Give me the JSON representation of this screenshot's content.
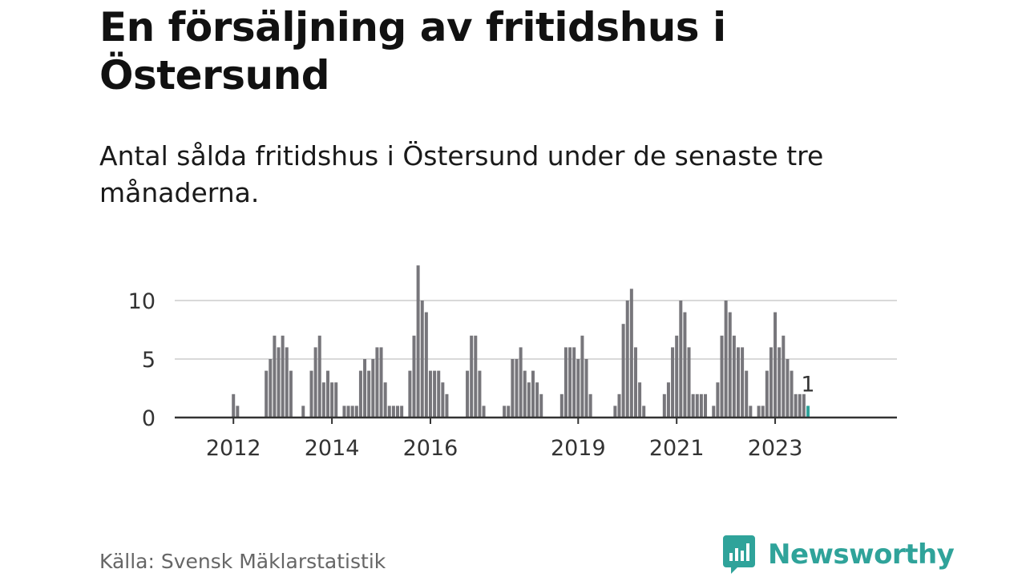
{
  "title": "En försäljning av fritidshus i Östersund",
  "subtitle": "Antal sålda fritidshus i Östersund under de senaste tre månaderna.",
  "source": "Källa: Svensk Mäklarstatistik",
  "brand": {
    "name": "Newsworthy",
    "icon": "newsworthy-logo-icon"
  },
  "colors": {
    "bar": "#77767b",
    "highlight": "#2fa39a",
    "grid": "#d9d9d9",
    "axis": "#333333",
    "text": "#333333"
  },
  "chart_data": {
    "type": "bar",
    "title": "",
    "xlabel": "",
    "ylabel": "",
    "ylim": [
      0,
      13
    ],
    "yticks": [
      0,
      5,
      10
    ],
    "grid": true,
    "x_ticks": [
      {
        "label": "2012",
        "index": 6
      },
      {
        "label": "2014",
        "index": 30
      },
      {
        "label": "2016",
        "index": 54
      },
      {
        "label": "2019",
        "index": 90
      },
      {
        "label": "2021",
        "index": 114
      },
      {
        "label": "2023",
        "index": 138
      }
    ],
    "values": [
      0,
      0,
      0,
      0,
      0,
      0,
      2,
      1,
      0,
      0,
      0,
      0,
      0,
      0,
      4,
      5,
      7,
      6,
      7,
      6,
      4,
      0,
      0,
      1,
      0,
      4,
      6,
      7,
      3,
      4,
      3,
      3,
      0,
      1,
      1,
      1,
      1,
      4,
      5,
      4,
      5,
      6,
      6,
      3,
      1,
      1,
      1,
      1,
      0,
      4,
      7,
      13,
      10,
      9,
      4,
      4,
      4,
      3,
      2,
      0,
      0,
      0,
      0,
      4,
      7,
      7,
      4,
      1,
      0,
      0,
      0,
      0,
      1,
      1,
      5,
      5,
      6,
      4,
      3,
      4,
      3,
      2,
      0,
      0,
      0,
      0,
      2,
      6,
      6,
      6,
      5,
      7,
      5,
      2,
      0,
      0,
      0,
      0,
      0,
      1,
      2,
      8,
      10,
      11,
      6,
      3,
      1,
      0,
      0,
      0,
      0,
      2,
      3,
      6,
      7,
      10,
      9,
      6,
      2,
      2,
      2,
      2,
      0,
      1,
      3,
      7,
      10,
      9,
      7,
      6,
      6,
      4,
      1,
      0,
      1,
      1,
      4,
      6,
      9,
      6,
      7,
      5,
      4,
      2,
      2,
      2,
      1
    ],
    "highlight_index": 146,
    "highlight_label": "1"
  }
}
